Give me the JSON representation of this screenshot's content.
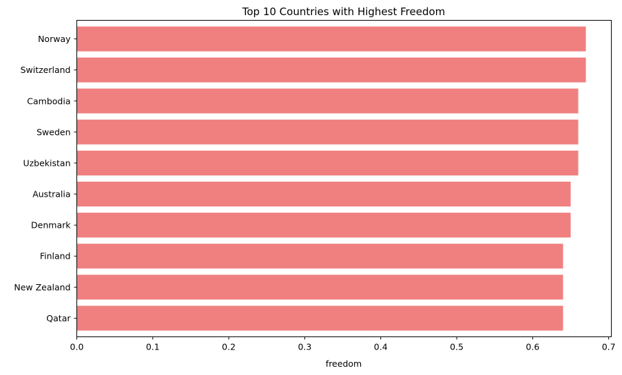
{
  "chart_data": {
    "type": "bar",
    "orientation": "horizontal",
    "title": "Top 10 Countries with Highest Freedom",
    "xlabel": "freedom",
    "ylabel": "",
    "categories": [
      "Norway",
      "Switzerland",
      "Cambodia",
      "Sweden",
      "Uzbekistan",
      "Australia",
      "Denmark",
      "Finland",
      "New Zealand",
      "Qatar"
    ],
    "values": [
      0.67,
      0.67,
      0.66,
      0.66,
      0.66,
      0.65,
      0.65,
      0.64,
      0.64,
      0.64
    ],
    "xlim": [
      0,
      0.7035
    ],
    "xticks": [
      0.0,
      0.1,
      0.2,
      0.3,
      0.4,
      0.5,
      0.6,
      0.7
    ],
    "xtick_labels": [
      "0.0",
      "0.1",
      "0.2",
      "0.3",
      "0.4",
      "0.5",
      "0.6",
      "0.7"
    ],
    "bar_color": "#f08080",
    "grid": false,
    "legend": "none"
  }
}
